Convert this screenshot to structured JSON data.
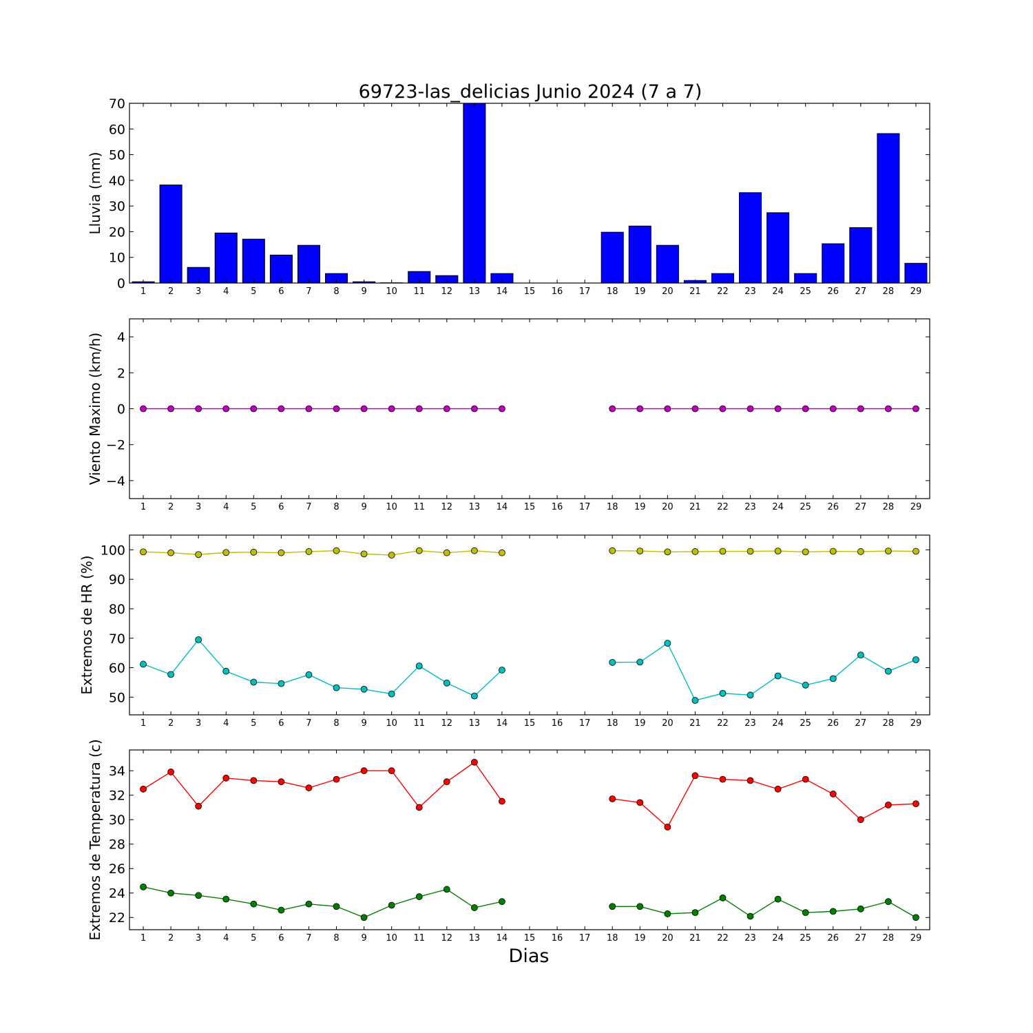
{
  "title": "69723-las_delicias Junio 2024  (7 a 7)",
  "xlabel": "Dias",
  "days": [
    1,
    2,
    3,
    4,
    5,
    6,
    7,
    8,
    9,
    10,
    11,
    12,
    13,
    14,
    15,
    16,
    17,
    18,
    19,
    20,
    21,
    22,
    23,
    24,
    25,
    26,
    27,
    28,
    29
  ],
  "chart_data": [
    {
      "type": "bar",
      "ylabel": "Lluvia (mm)",
      "ylim": [
        0,
        70
      ],
      "yticks": [
        0,
        10,
        20,
        30,
        40,
        50,
        60,
        70
      ],
      "color": "#0000ff",
      "values": [
        0.5,
        38.2,
        6.1,
        19.5,
        17.1,
        10.9,
        14.7,
        3.7,
        0.5,
        0.1,
        4.5,
        2.9,
        70,
        3.7,
        0,
        0,
        0,
        19.8,
        22.2,
        14.7,
        1.0,
        3.7,
        35.2,
        27.4,
        3.7,
        15.3,
        21.6,
        58.2,
        7.7
      ]
    },
    {
      "type": "line",
      "ylabel": "Viento Maximo (km/h)",
      "ylim": [
        -5,
        5
      ],
      "yticks": [
        -4,
        -2,
        0,
        2,
        4
      ],
      "series": [
        {
          "color": "#bf00bf",
          "values": [
            0,
            0,
            0,
            0,
            0,
            0,
            0,
            0,
            0,
            0,
            0,
            0,
            0,
            0,
            null,
            null,
            null,
            0,
            0,
            0,
            0,
            0,
            0,
            0,
            0,
            0,
            0,
            0,
            0
          ]
        }
      ]
    },
    {
      "type": "line",
      "ylabel": "Extremos de HR (%)",
      "ylim": [
        44,
        105
      ],
      "yticks": [
        50,
        60,
        70,
        80,
        90,
        100
      ],
      "series": [
        {
          "color": "#bfbf00",
          "values": [
            99.3,
            99.0,
            98.4,
            99.1,
            99.2,
            99.0,
            99.4,
            99.7,
            98.6,
            98.2,
            99.7,
            99.0,
            99.7,
            99.0,
            null,
            null,
            null,
            99.7,
            99.6,
            99.3,
            99.4,
            99.5,
            99.5,
            99.6,
            99.3,
            99.5,
            99.4,
            99.6,
            99.5
          ]
        },
        {
          "color": "#00bfbf",
          "values": [
            61.2,
            57.7,
            69.5,
            58.8,
            55.1,
            54.6,
            57.6,
            53.2,
            52.7,
            51.1,
            60.6,
            54.8,
            50.4,
            59.2,
            null,
            null,
            null,
            61.8,
            61.9,
            68.3,
            48.9,
            51.3,
            50.7,
            57.2,
            54.1,
            56.3,
            64.3,
            58.8,
            62.7
          ]
        }
      ]
    },
    {
      "type": "line",
      "ylabel": "Extremos de Temperatura (c)",
      "ylim": [
        21,
        35.7
      ],
      "yticks": [
        22,
        24,
        26,
        28,
        30,
        32,
        34
      ],
      "series": [
        {
          "color": "#ff0000",
          "values": [
            32.5,
            33.9,
            31.1,
            33.4,
            33.2,
            33.1,
            32.6,
            33.3,
            34.0,
            34.0,
            31.0,
            33.1,
            34.7,
            31.5,
            null,
            null,
            null,
            31.7,
            31.4,
            29.4,
            33.6,
            33.3,
            33.2,
            32.5,
            33.3,
            32.1,
            30.0,
            31.2,
            31.3
          ]
        },
        {
          "color": "#007f00",
          "values": [
            24.5,
            24.0,
            23.8,
            23.5,
            23.1,
            22.6,
            23.1,
            22.9,
            22.0,
            23.0,
            23.7,
            24.3,
            22.8,
            23.3,
            null,
            null,
            null,
            22.9,
            22.9,
            22.3,
            22.4,
            23.6,
            22.1,
            23.5,
            22.4,
            22.5,
            22.7,
            23.3,
            22.0
          ]
        }
      ]
    }
  ]
}
